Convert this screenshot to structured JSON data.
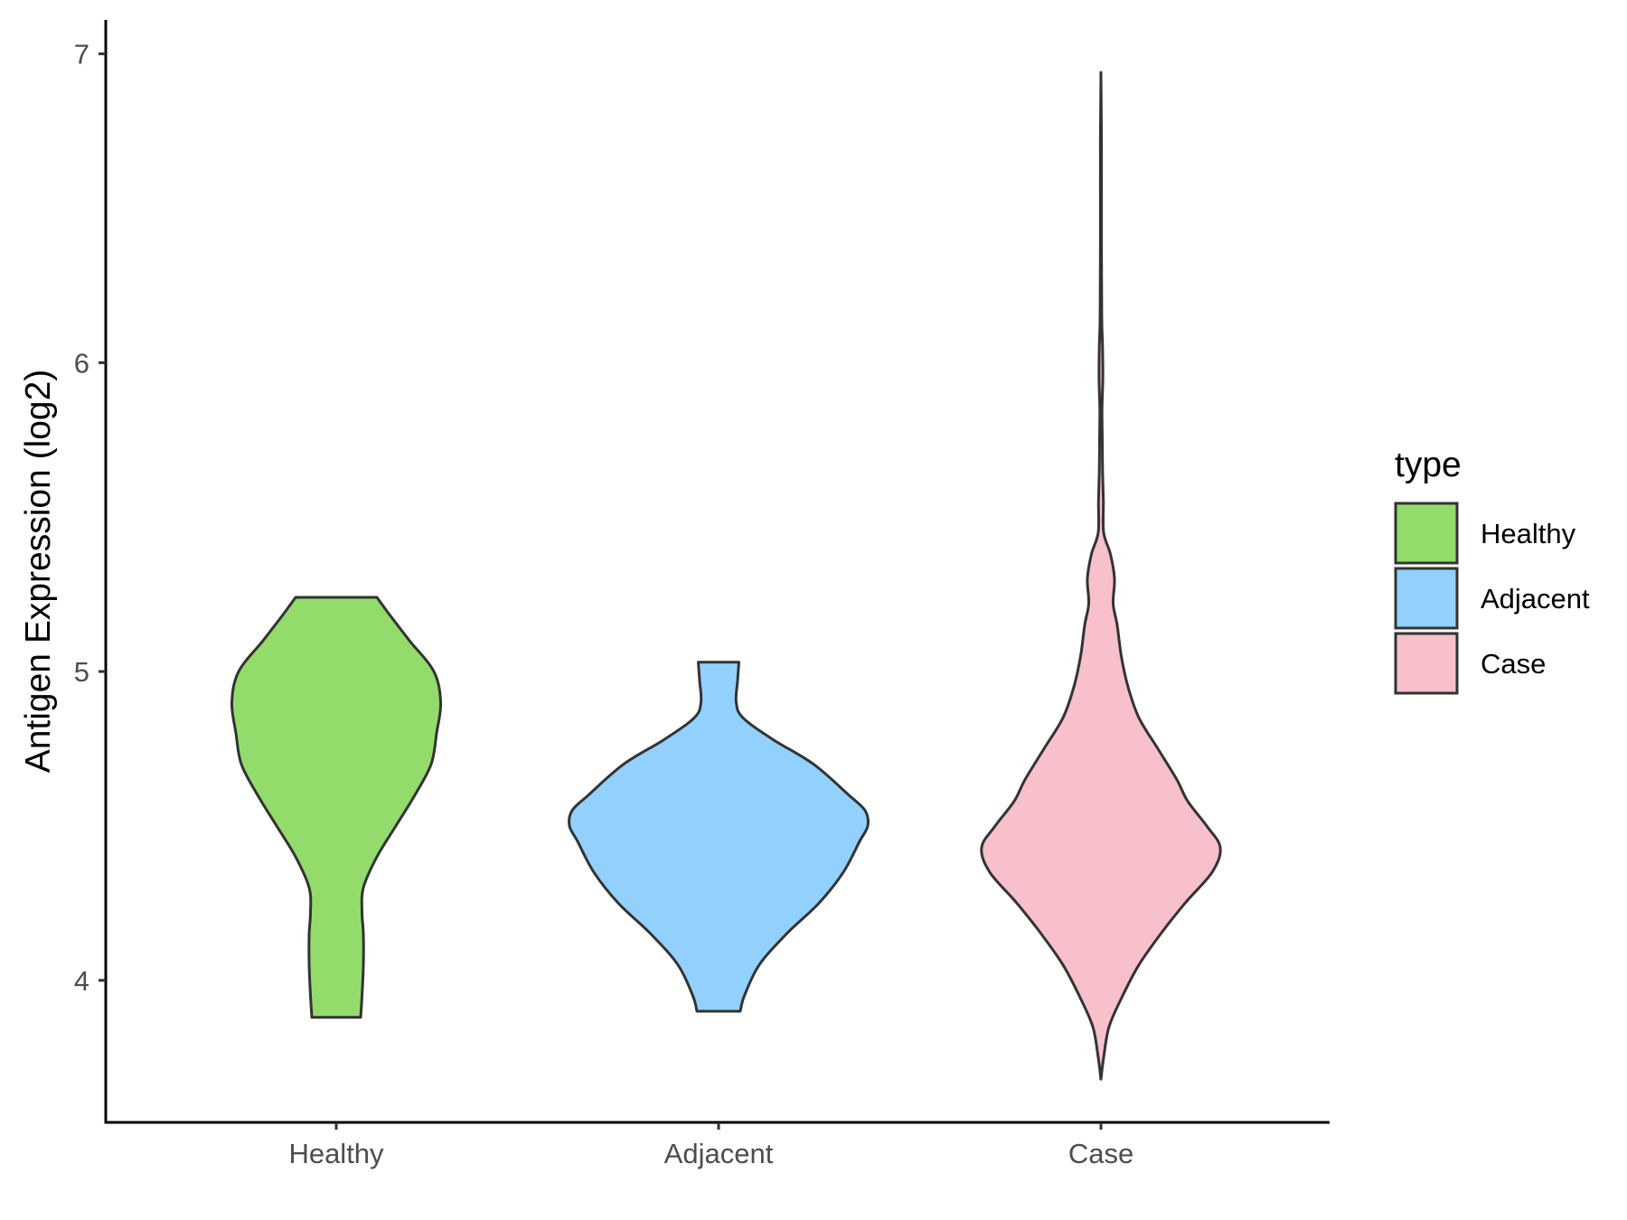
{
  "chart_data": {
    "type": "violin",
    "ylabel": "Antigen Expression (log2)",
    "xlabel": "",
    "categories": [
      "Healthy",
      "Adjacent",
      "Case"
    ],
    "yticks": [
      4,
      5,
      6,
      7
    ],
    "ylim": [
      3.54,
      7.11
    ],
    "grid": false,
    "legend": {
      "title": "type",
      "position": "right",
      "entries": [
        {
          "label": "Healthy",
          "color": "#93dc6b"
        },
        {
          "label": "Adjacent",
          "color": "#92d1fd"
        },
        {
          "label": "Case",
          "color": "#f7c0cb"
        }
      ]
    },
    "series": [
      {
        "category": "Healthy",
        "color": "#93dc6b",
        "min": 3.88,
        "max": 5.24,
        "density": [
          [
            3.88,
            0.09
          ],
          [
            3.95,
            0.095
          ],
          [
            4.05,
            0.1
          ],
          [
            4.15,
            0.1
          ],
          [
            4.22,
            0.095
          ],
          [
            4.3,
            0.1
          ],
          [
            4.4,
            0.15
          ],
          [
            4.5,
            0.22
          ],
          [
            4.6,
            0.29
          ],
          [
            4.7,
            0.35
          ],
          [
            4.8,
            0.37
          ],
          [
            4.9,
            0.385
          ],
          [
            5.0,
            0.36
          ],
          [
            5.1,
            0.27
          ],
          [
            5.18,
            0.2
          ],
          [
            5.24,
            0.15
          ]
        ]
      },
      {
        "category": "Adjacent",
        "color": "#92d1fd",
        "min": 3.9,
        "max": 5.03,
        "density": [
          [
            3.9,
            0.08
          ],
          [
            3.95,
            0.095
          ],
          [
            4.05,
            0.15
          ],
          [
            4.15,
            0.25
          ],
          [
            4.25,
            0.37
          ],
          [
            4.35,
            0.46
          ],
          [
            4.45,
            0.52
          ],
          [
            4.5,
            0.55
          ],
          [
            4.55,
            0.54
          ],
          [
            4.6,
            0.48
          ],
          [
            4.7,
            0.35
          ],
          [
            4.78,
            0.2
          ],
          [
            4.85,
            0.09
          ],
          [
            4.9,
            0.065
          ],
          [
            4.97,
            0.07
          ],
          [
            5.03,
            0.075
          ]
        ]
      },
      {
        "category": "Case",
        "color": "#f7c0cb",
        "min": 3.68,
        "max": 6.94,
        "density": [
          [
            3.68,
            0.0
          ],
          [
            3.75,
            0.01
          ],
          [
            3.85,
            0.03
          ],
          [
            3.95,
            0.08
          ],
          [
            4.05,
            0.14
          ],
          [
            4.15,
            0.22
          ],
          [
            4.25,
            0.31
          ],
          [
            4.35,
            0.41
          ],
          [
            4.43,
            0.44
          ],
          [
            4.5,
            0.39
          ],
          [
            4.58,
            0.32
          ],
          [
            4.65,
            0.28
          ],
          [
            4.75,
            0.21
          ],
          [
            4.85,
            0.14
          ],
          [
            4.95,
            0.1
          ],
          [
            5.05,
            0.075
          ],
          [
            5.15,
            0.06
          ],
          [
            5.22,
            0.045
          ],
          [
            5.3,
            0.05
          ],
          [
            5.38,
            0.035
          ],
          [
            5.45,
            0.01
          ],
          [
            5.55,
            0.009
          ],
          [
            5.65,
            0.006
          ],
          [
            5.75,
            0.005
          ],
          [
            5.85,
            0.004
          ],
          [
            5.95,
            0.007
          ],
          [
            6.05,
            0.006
          ],
          [
            6.15,
            0.003
          ],
          [
            6.4,
            0.002
          ],
          [
            6.7,
            0.002
          ],
          [
            6.94,
            0.0
          ]
        ]
      }
    ]
  }
}
